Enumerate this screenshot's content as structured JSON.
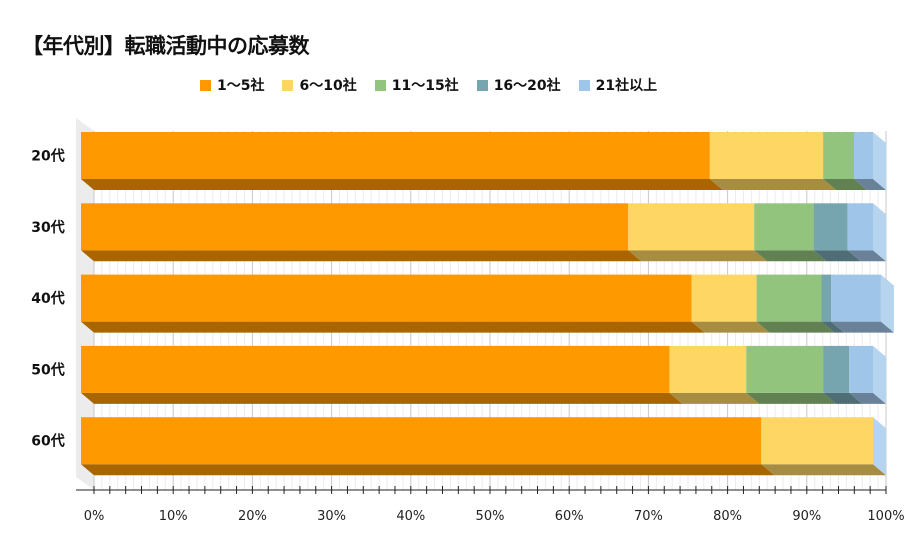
{
  "chart_data": {
    "type": "bar",
    "orientation": "horizontal",
    "stacked": "percent",
    "style": "3d",
    "title": "【年代別】転職活動中の応募数",
    "categories": [
      "20代",
      "30代",
      "40代",
      "50代",
      "60代"
    ],
    "series": [
      {
        "name": "1〜5社",
        "color": "#FF9900",
        "values": [
          79.4,
          69.1,
          77.1,
          74.3,
          85.9
        ]
      },
      {
        "name": "6〜10社",
        "color": "#FDD663",
        "values": [
          14.3,
          15.9,
          8.2,
          9.7,
          14.1
        ]
      },
      {
        "name": "11〜15社",
        "color": "#93C47D",
        "values": [
          3.9,
          7.5,
          8.2,
          9.7,
          0
        ]
      },
      {
        "name": "16〜20社",
        "color": "#76A5AF",
        "values": [
          0,
          4.3,
          1.2,
          3.3,
          0
        ]
      },
      {
        "name": "21社以上",
        "color": "#9FC5E8",
        "values": [
          2.4,
          3.2,
          6.3,
          3.0,
          0
        ]
      }
    ],
    "xlim": [
      0,
      100
    ],
    "xticks": [
      "0%",
      "10%",
      "20%",
      "30%",
      "40%",
      "50%",
      "60%",
      "70%",
      "80%",
      "90%",
      "100%"
    ],
    "grid": true,
    "legend": "top"
  }
}
